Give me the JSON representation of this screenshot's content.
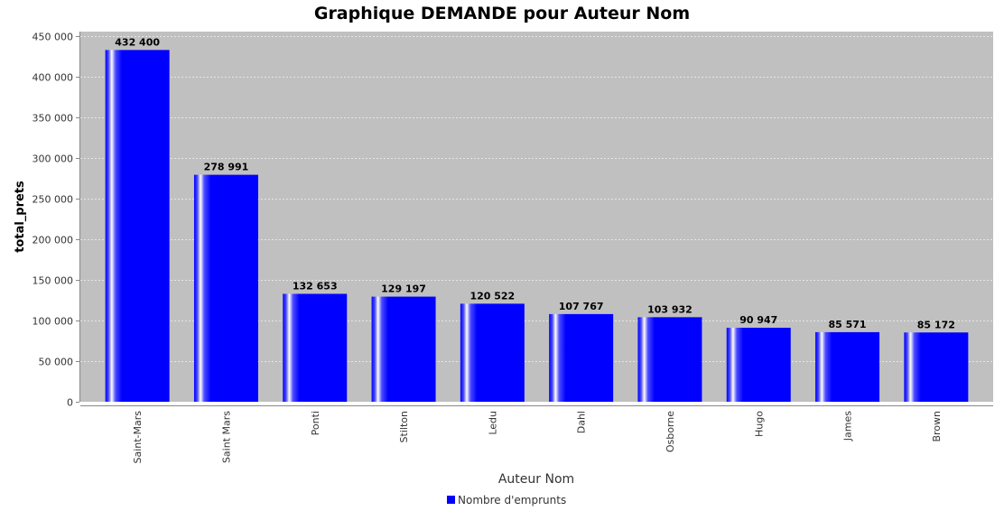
{
  "chart_data": {
    "type": "bar",
    "title": "Graphique DEMANDE pour Auteur Nom",
    "xlabel": "Auteur Nom",
    "ylabel": "total_prets",
    "categories": [
      "Saint-Mars",
      "Saint Mars",
      "Ponti",
      "Stilton",
      "Ledu",
      "Dahl",
      "Osborne",
      "Hugo",
      "James",
      "Brown"
    ],
    "series": [
      {
        "name": "Nombre d'emprunts",
        "values": [
          432400,
          278991,
          132653,
          129197,
          120522,
          107767,
          103932,
          90947,
          85571,
          85172
        ],
        "data_labels": [
          "432 400",
          "278 991",
          "132 653",
          "129 197",
          "120 522",
          "107 767",
          "103 932",
          "90 947",
          "85 571",
          "85 172"
        ]
      }
    ],
    "yticks": [
      0,
      50000,
      100000,
      150000,
      200000,
      250000,
      300000,
      350000,
      400000,
      450000
    ],
    "ytick_labels": [
      "0",
      "50 000",
      "100 000",
      "150 000",
      "200 000",
      "250 000",
      "300 000",
      "350 000",
      "400 000",
      "450 000"
    ],
    "ylim": [
      0,
      455000
    ],
    "grid": true,
    "legend_position": "bottom",
    "colors": {
      "bar": "#0000ff",
      "plot_background": "#c0c0c0",
      "grid": "#e6e6e6"
    }
  }
}
